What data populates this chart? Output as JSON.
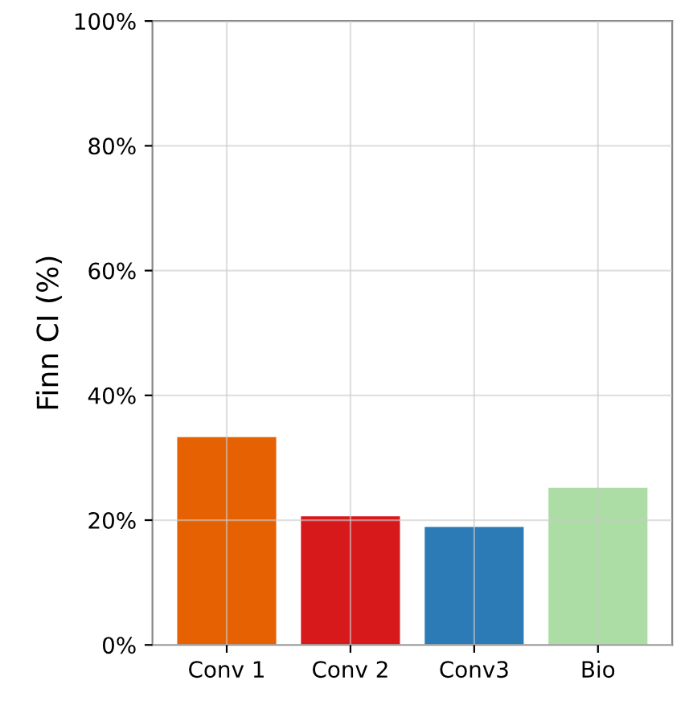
{
  "chart_data": {
    "type": "bar",
    "ylabel": "Finn CI (%)",
    "categories": [
      "Conv 1",
      "Conv 2",
      "Conv3",
      "Bio"
    ],
    "values": [
      33.3,
      20.6,
      18.9,
      25.2
    ],
    "colors": [
      "#e66101",
      "#d7191c",
      "#2c7bb6",
      "#abdda4"
    ],
    "ylim": [
      0,
      100
    ],
    "yticks": [
      {
        "value": 0,
        "label": "0%"
      },
      {
        "value": 20,
        "label": "20%"
      },
      {
        "value": 40,
        "label": "40%"
      },
      {
        "value": 60,
        "label": "60%"
      },
      {
        "value": 80,
        "label": "80%"
      },
      {
        "value": 100,
        "label": "100%"
      }
    ],
    "grid": true
  }
}
